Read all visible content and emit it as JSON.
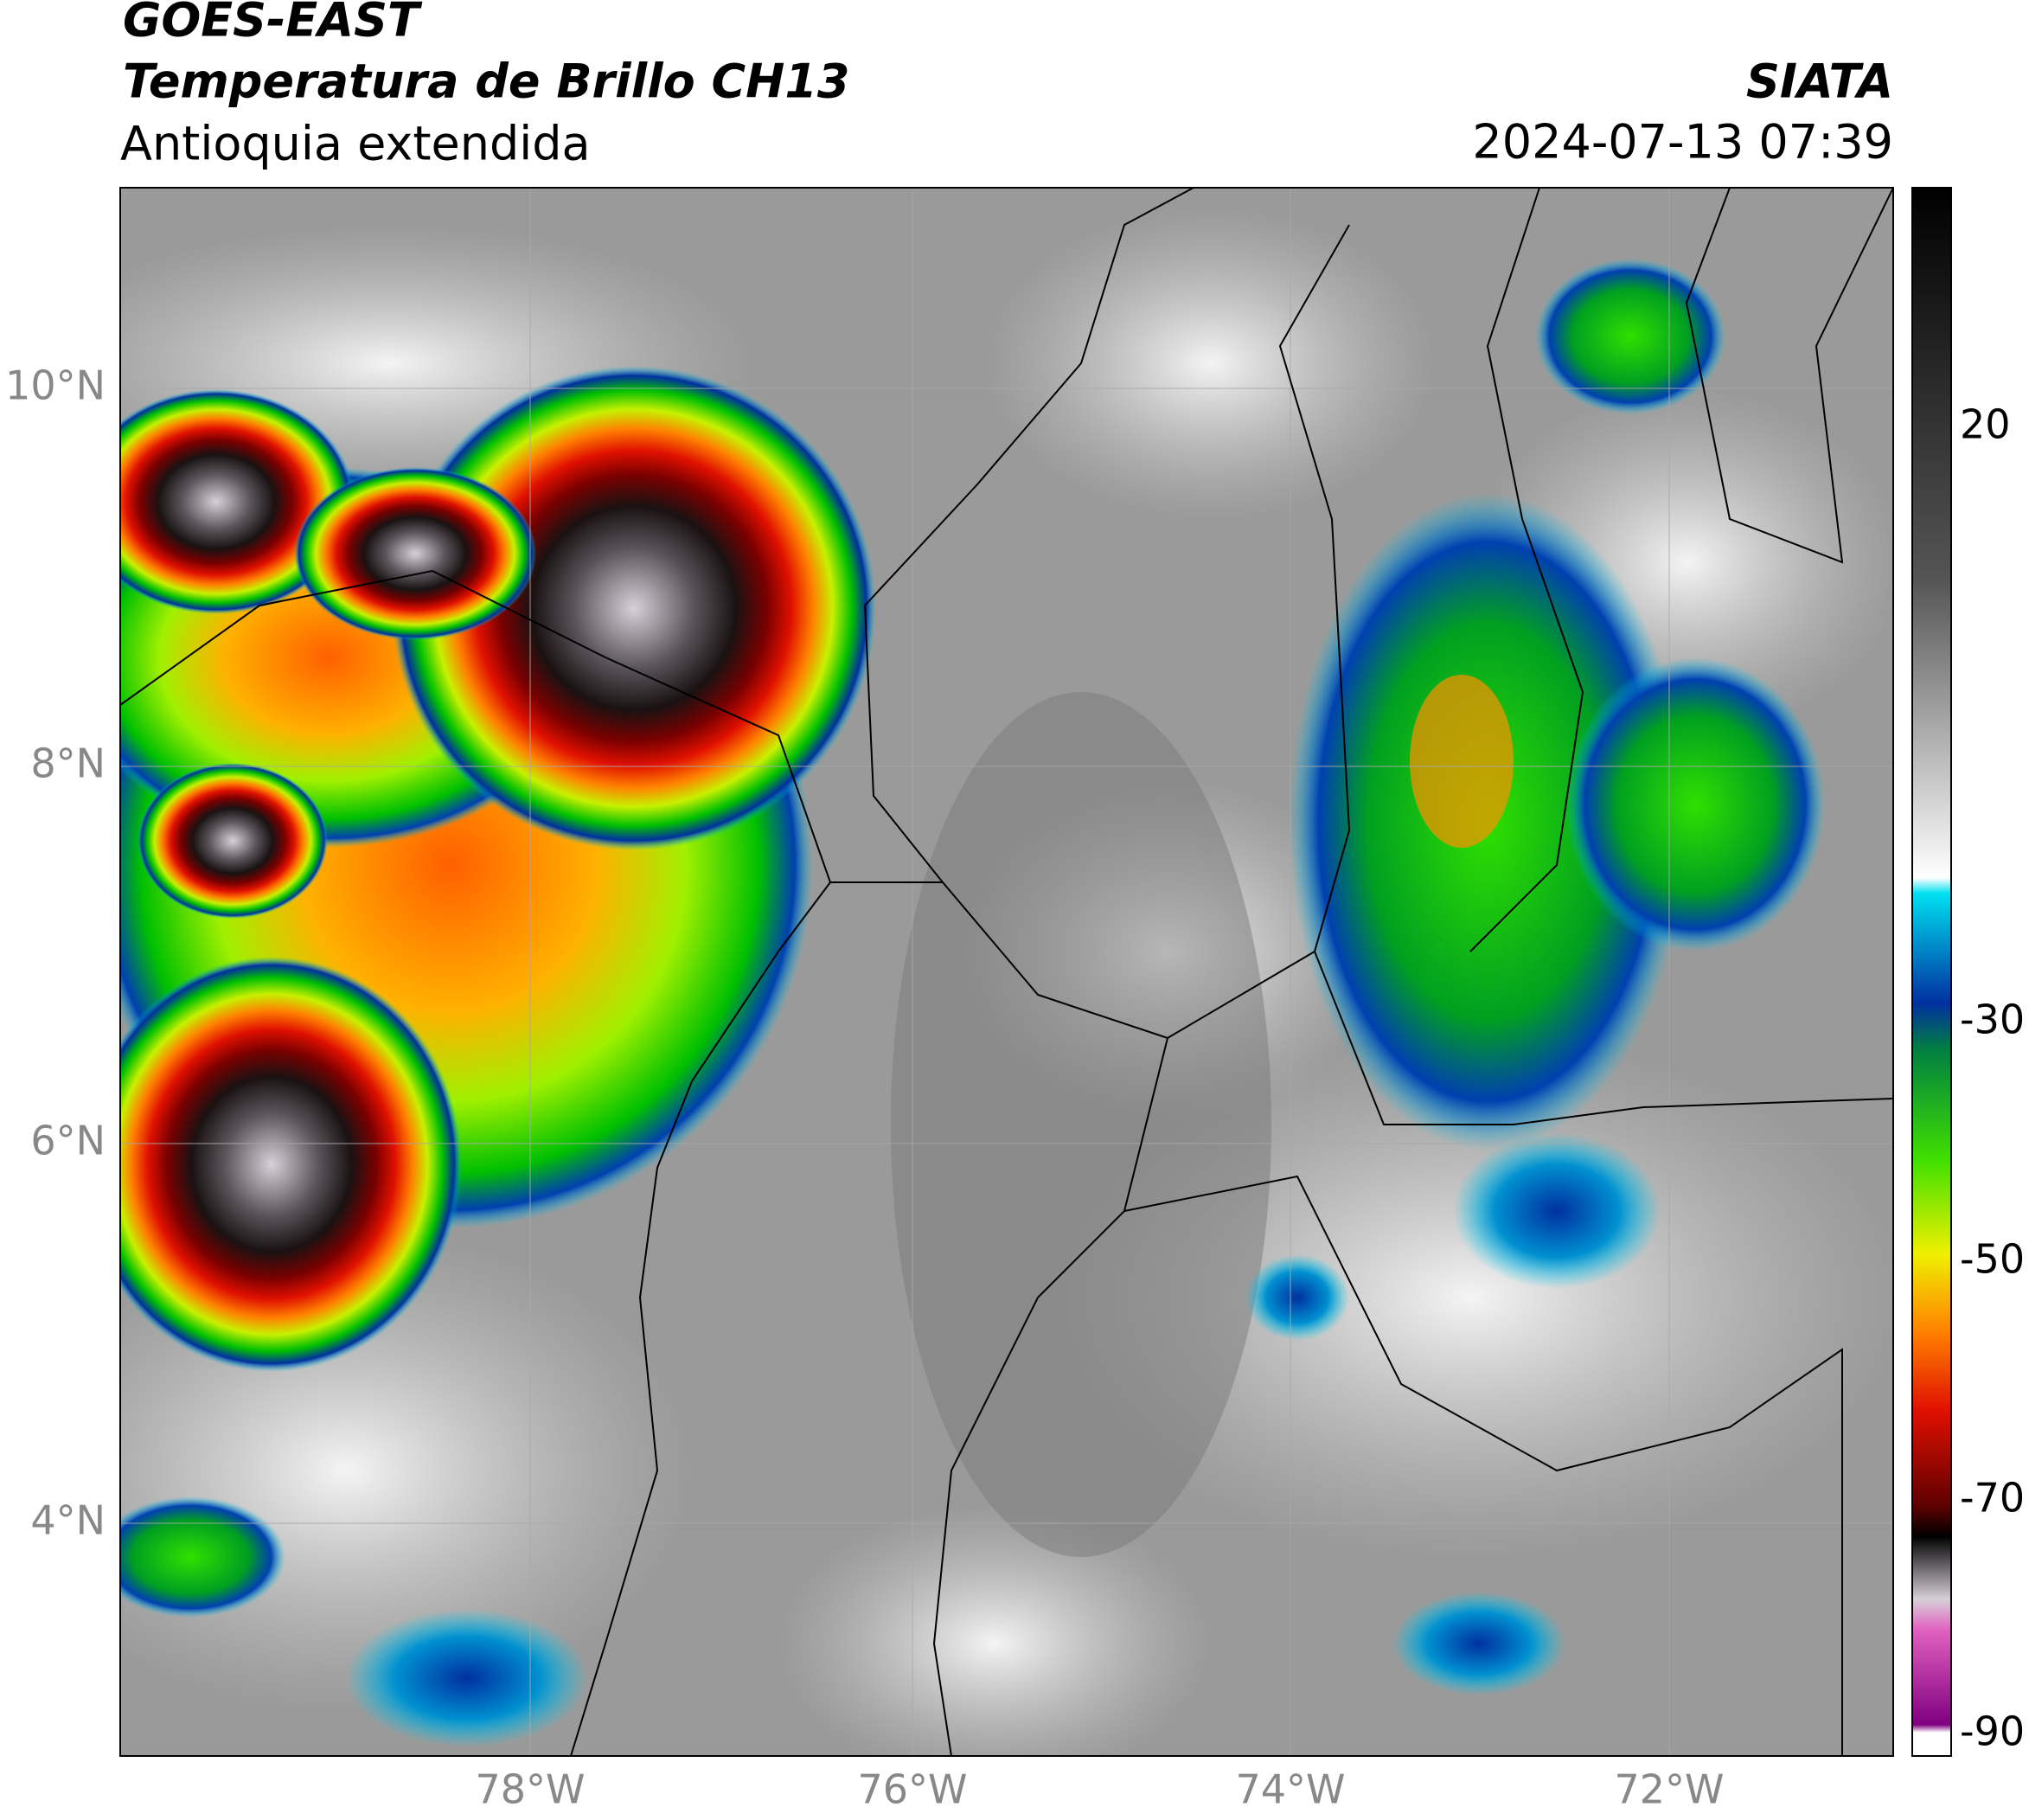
{
  "header": {
    "title": "GOES-EAST",
    "subtitle": "Temperatura de Brillo CH13",
    "region": "Antioquia extendida",
    "source": "SIATA",
    "datetime": "2024-07-13 07:39"
  },
  "map": {
    "lat_labels": [
      "10°N",
      "8°N",
      "6°N",
      "4°N"
    ],
    "lon_labels": [
      "78°W",
      "76°W",
      "74°W",
      "72°W"
    ]
  },
  "colorbar": {
    "ticks": [
      20,
      -30,
      -50,
      -70,
      -90
    ]
  }
}
